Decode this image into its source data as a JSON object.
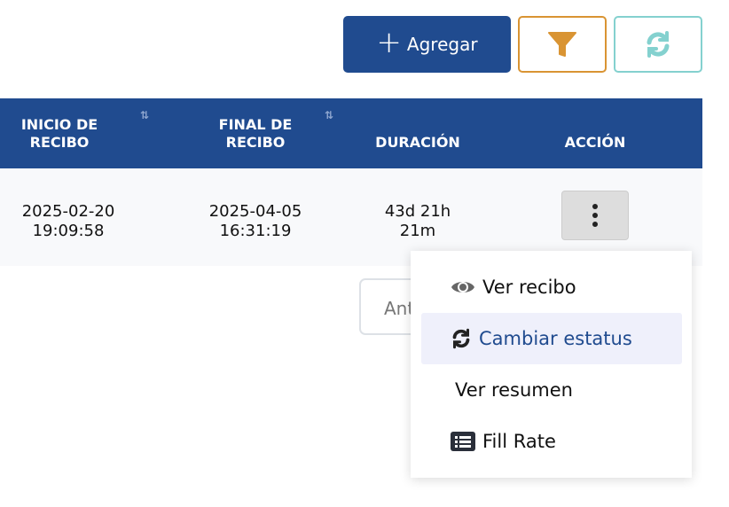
{
  "toolbar": {
    "add_label": "Agregar",
    "colors": {
      "primary": "#204b8f",
      "filter": "#d99433",
      "refresh": "#84d1cf"
    }
  },
  "table": {
    "headers": [
      {
        "label": "INICIO DE RECIBO",
        "sortable": true
      },
      {
        "label": "FINAL DE RECIBO",
        "sortable": true
      },
      {
        "label": "DURACIÓN",
        "sortable": false
      },
      {
        "label": "ACCIÓN",
        "sortable": false
      }
    ],
    "rows": [
      {
        "inicio": "2025-02-20 19:09:58",
        "final": "2025-04-05 16:31:19",
        "duracion": "43d 21h 21m"
      }
    ]
  },
  "pagination": {
    "prev_label": "Anterior"
  },
  "menu": {
    "items": [
      {
        "label": "Ver recibo",
        "icon": "eye-icon"
      },
      {
        "label": "Cambiar estatus",
        "icon": "sync-icon",
        "highlighted": true
      },
      {
        "label": "Ver resumen"
      },
      {
        "label": "Fill Rate",
        "icon": "list-icon"
      }
    ]
  }
}
